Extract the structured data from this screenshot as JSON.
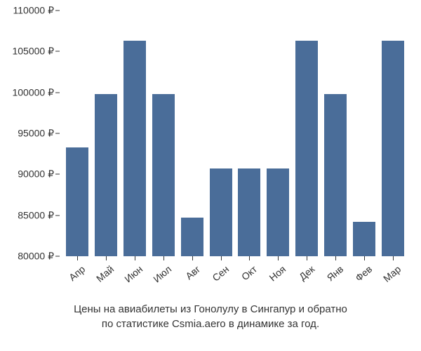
{
  "chart": {
    "type": "bar",
    "categories": [
      "Апр",
      "Май",
      "Июн",
      "Июл",
      "Авг",
      "Сен",
      "Окт",
      "Ноя",
      "Дек",
      "Янв",
      "Фев",
      "Мар"
    ],
    "values": [
      93300,
      99800,
      106300,
      99800,
      84700,
      90700,
      90700,
      90700,
      106300,
      99800,
      84200,
      106300
    ],
    "bar_color": "#4a6d99",
    "background_color": "#ffffff",
    "ylim": [
      80000,
      110000
    ],
    "ytick_step": 5000,
    "ytick_labels": [
      "80000 ₽",
      "85000 ₽",
      "90000 ₽",
      "95000 ₽",
      "100000 ₽",
      "105000 ₽",
      "110000 ₽"
    ],
    "ytick_values": [
      80000,
      85000,
      90000,
      95000,
      100000,
      105000,
      110000
    ],
    "bar_width_ratio": 0.78,
    "label_fontsize": 14,
    "caption_fontsize": 15,
    "text_color": "#333333",
    "x_label_rotation": -40
  },
  "caption": {
    "line1": "Цены на авиабилеты из Гонолулу в Сингапур и обратно",
    "line2": "по статистике Csmia.aero в динамике за год."
  }
}
